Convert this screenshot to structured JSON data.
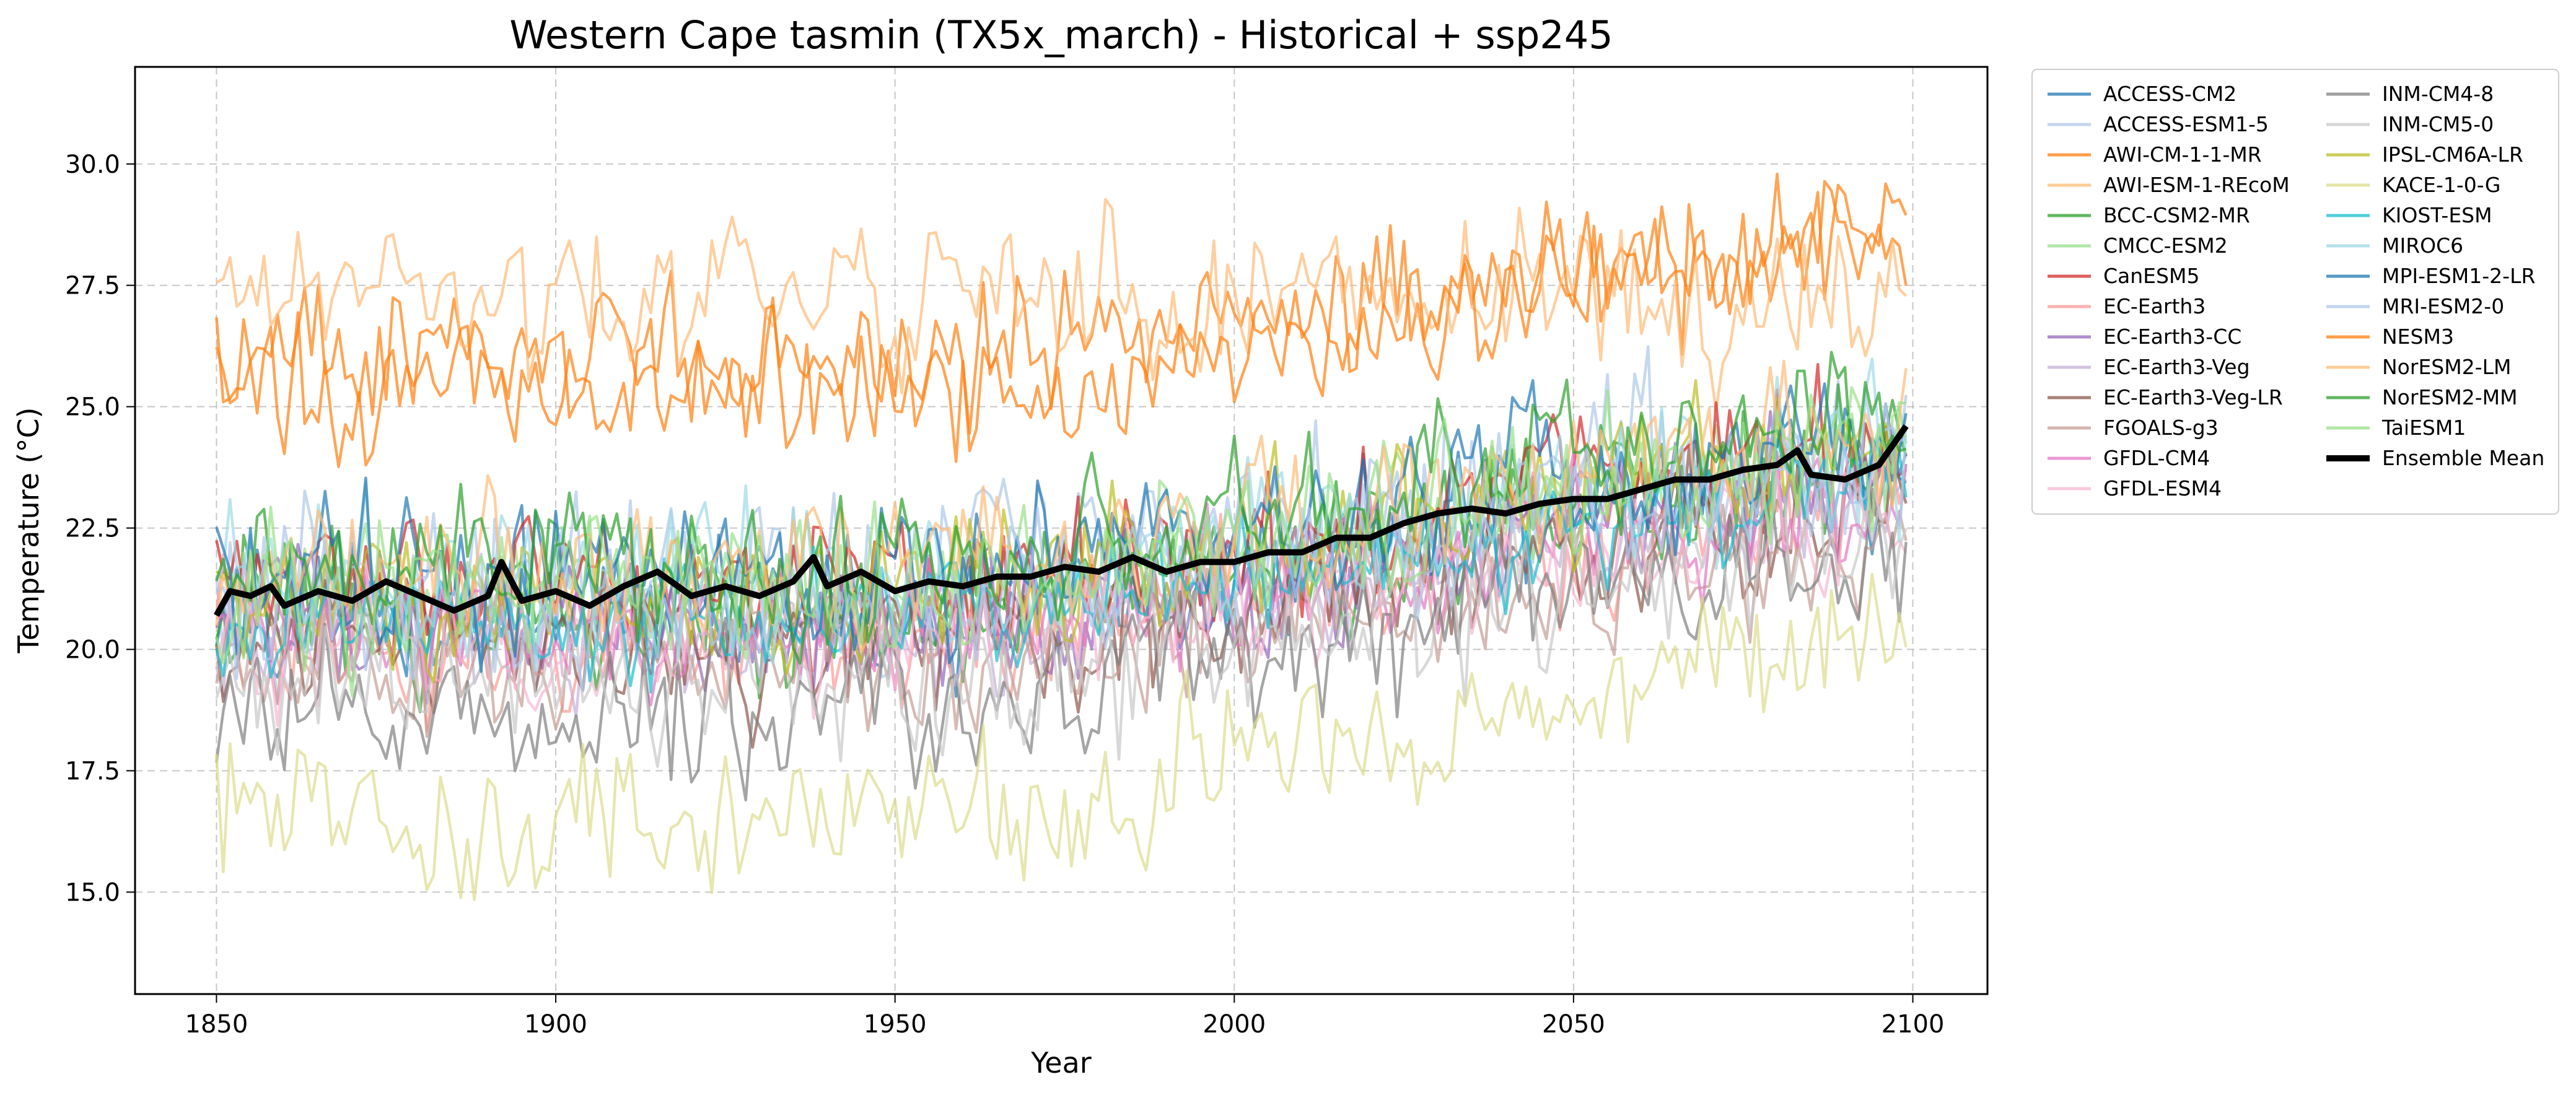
{
  "chart_data": {
    "type": "line",
    "title": "Western Cape tasmin (TX5x_march) - Historical + ssp245",
    "xlabel": "Year",
    "ylabel": "Temperature (°C)",
    "xlim": [
      1838,
      2111
    ],
    "ylim": [
      12.9,
      32.0
    ],
    "x_ticks": [
      1850,
      1900,
      1950,
      2000,
      2050,
      2100
    ],
    "y_ticks": [
      15.0,
      17.5,
      20.0,
      22.5,
      25.0,
      27.5,
      30.0
    ],
    "grid": true,
    "legend_position": "outside-right",
    "x_start": 1850,
    "x_end": 2099,
    "series": [
      {
        "name": "ACCESS-CM2",
        "color": "#1f77b4",
        "base": 20.8,
        "amp": 1.3,
        "trend": 3.0
      },
      {
        "name": "ACCESS-ESM1-5",
        "color": "#aec7e8",
        "base": 21.4,
        "amp": 1.6,
        "trend": 2.8
      },
      {
        "name": "AWI-CM-1-1-MR",
        "color": "#ff7f0e",
        "base": 26.0,
        "amp": 1.2,
        "trend": 2.2
      },
      {
        "name": "AWI-ESM-1-REcoM",
        "color": "#ffbb78",
        "base": 27.3,
        "amp": 1.3,
        "trend": -0.6
      },
      {
        "name": "BCC-CSM2-MR",
        "color": "#2ca02c",
        "base": 20.6,
        "amp": 1.3,
        "trend": 3.0
      },
      {
        "name": "CMCC-ESM2",
        "color": "#98df8a",
        "base": 21.2,
        "amp": 1.2,
        "trend": 2.9
      },
      {
        "name": "CanESM5",
        "color": "#d62728",
        "base": 21.0,
        "amp": 1.3,
        "trend": 3.2
      },
      {
        "name": "EC-Earth3",
        "color": "#ff9896",
        "base": 20.2,
        "amp": 1.2,
        "trend": 2.8
      },
      {
        "name": "EC-Earth3-CC",
        "color": "#9467bd",
        "base": 20.5,
        "amp": 1.2,
        "trend": 2.9
      },
      {
        "name": "EC-Earth3-Veg",
        "color": "#c5b0d5",
        "base": 20.3,
        "amp": 1.2,
        "trend": 2.8
      },
      {
        "name": "EC-Earth3-Veg-LR",
        "color": "#8c564b",
        "base": 20.0,
        "amp": 1.2,
        "trend": 2.7
      },
      {
        "name": "FGOALS-g3",
        "color": "#c49c94",
        "base": 19.8,
        "amp": 1.2,
        "trend": 2.4
      },
      {
        "name": "GFDL-CM4",
        "color": "#e377c2",
        "base": 20.4,
        "amp": 1.1,
        "trend": 2.6
      },
      {
        "name": "GFDL-ESM4",
        "color": "#f7b6d2",
        "base": 20.1,
        "amp": 1.1,
        "trend": 2.5
      },
      {
        "name": "INM-CM4-8",
        "color": "#7f7f7f",
        "base": 18.7,
        "amp": 1.3,
        "trend": 3.3
      },
      {
        "name": "INM-CM5-0",
        "color": "#c7c7c7",
        "base": 19.2,
        "amp": 1.3,
        "trend": 3.0
      },
      {
        "name": "IPSL-CM6A-LR",
        "color": "#bcbd22",
        "base": 21.0,
        "amp": 1.3,
        "trend": 3.3
      },
      {
        "name": "KACE-1-0-G",
        "color": "#dbdb8d",
        "base": 16.3,
        "amp": 1.4,
        "trend": 3.8
      },
      {
        "name": "KIOST-ESM",
        "color": "#17becf",
        "base": 20.6,
        "amp": 1.1,
        "trend": 2.7
      },
      {
        "name": "MIROC6",
        "color": "#9edae5",
        "base": 21.3,
        "amp": 1.4,
        "trend": 3.0
      },
      {
        "name": "MPI-ESM1-2-LR",
        "color": "#1f77b4",
        "base": 21.5,
        "amp": 1.4,
        "trend": 2.9
      },
      {
        "name": "MRI-ESM2-0",
        "color": "#aec7e8",
        "base": 20.9,
        "amp": 1.3,
        "trend": 3.1
      },
      {
        "name": "NESM3",
        "color": "#ff7f0e",
        "base": 25.2,
        "amp": 1.2,
        "trend": 3.6
      },
      {
        "name": "NorESM2-LM",
        "color": "#ffbb78",
        "base": 21.5,
        "amp": 1.3,
        "trend": 3.0
      },
      {
        "name": "NorESM2-MM",
        "color": "#2ca02c",
        "base": 21.6,
        "amp": 1.3,
        "trend": 3.2
      },
      {
        "name": "TaiESM1",
        "color": "#98df8a",
        "base": 21.1,
        "amp": 1.3,
        "trend": 3.0
      }
    ],
    "ensemble_mean": {
      "name": "Ensemble Mean",
      "color": "#000000",
      "points": [
        [
          1850,
          20.7
        ],
        [
          1852,
          21.2
        ],
        [
          1855,
          21.1
        ],
        [
          1858,
          21.3
        ],
        [
          1860,
          20.9
        ],
        [
          1865,
          21.2
        ],
        [
          1870,
          21.0
        ],
        [
          1875,
          21.4
        ],
        [
          1880,
          21.1
        ],
        [
          1885,
          20.8
        ],
        [
          1890,
          21.1
        ],
        [
          1892,
          21.8
        ],
        [
          1895,
          21.0
        ],
        [
          1900,
          21.2
        ],
        [
          1905,
          20.9
        ],
        [
          1910,
          21.3
        ],
        [
          1915,
          21.6
        ],
        [
          1920,
          21.1
        ],
        [
          1925,
          21.3
        ],
        [
          1930,
          21.1
        ],
        [
          1935,
          21.4
        ],
        [
          1938,
          21.9
        ],
        [
          1940,
          21.3
        ],
        [
          1945,
          21.6
        ],
        [
          1950,
          21.2
        ],
        [
          1955,
          21.4
        ],
        [
          1960,
          21.3
        ],
        [
          1965,
          21.5
        ],
        [
          1970,
          21.5
        ],
        [
          1975,
          21.7
        ],
        [
          1980,
          21.6
        ],
        [
          1985,
          21.9
        ],
        [
          1990,
          21.6
        ],
        [
          1995,
          21.8
        ],
        [
          2000,
          21.8
        ],
        [
          2005,
          22.0
        ],
        [
          2010,
          22.0
        ],
        [
          2015,
          22.3
        ],
        [
          2020,
          22.3
        ],
        [
          2025,
          22.6
        ],
        [
          2030,
          22.8
        ],
        [
          2035,
          22.9
        ],
        [
          2040,
          22.8
        ],
        [
          2045,
          23.0
        ],
        [
          2050,
          23.1
        ],
        [
          2055,
          23.1
        ],
        [
          2060,
          23.3
        ],
        [
          2065,
          23.5
        ],
        [
          2070,
          23.5
        ],
        [
          2075,
          23.7
        ],
        [
          2080,
          23.8
        ],
        [
          2083,
          24.1
        ],
        [
          2085,
          23.6
        ],
        [
          2090,
          23.5
        ],
        [
          2095,
          23.8
        ],
        [
          2099,
          24.6
        ]
      ]
    }
  }
}
